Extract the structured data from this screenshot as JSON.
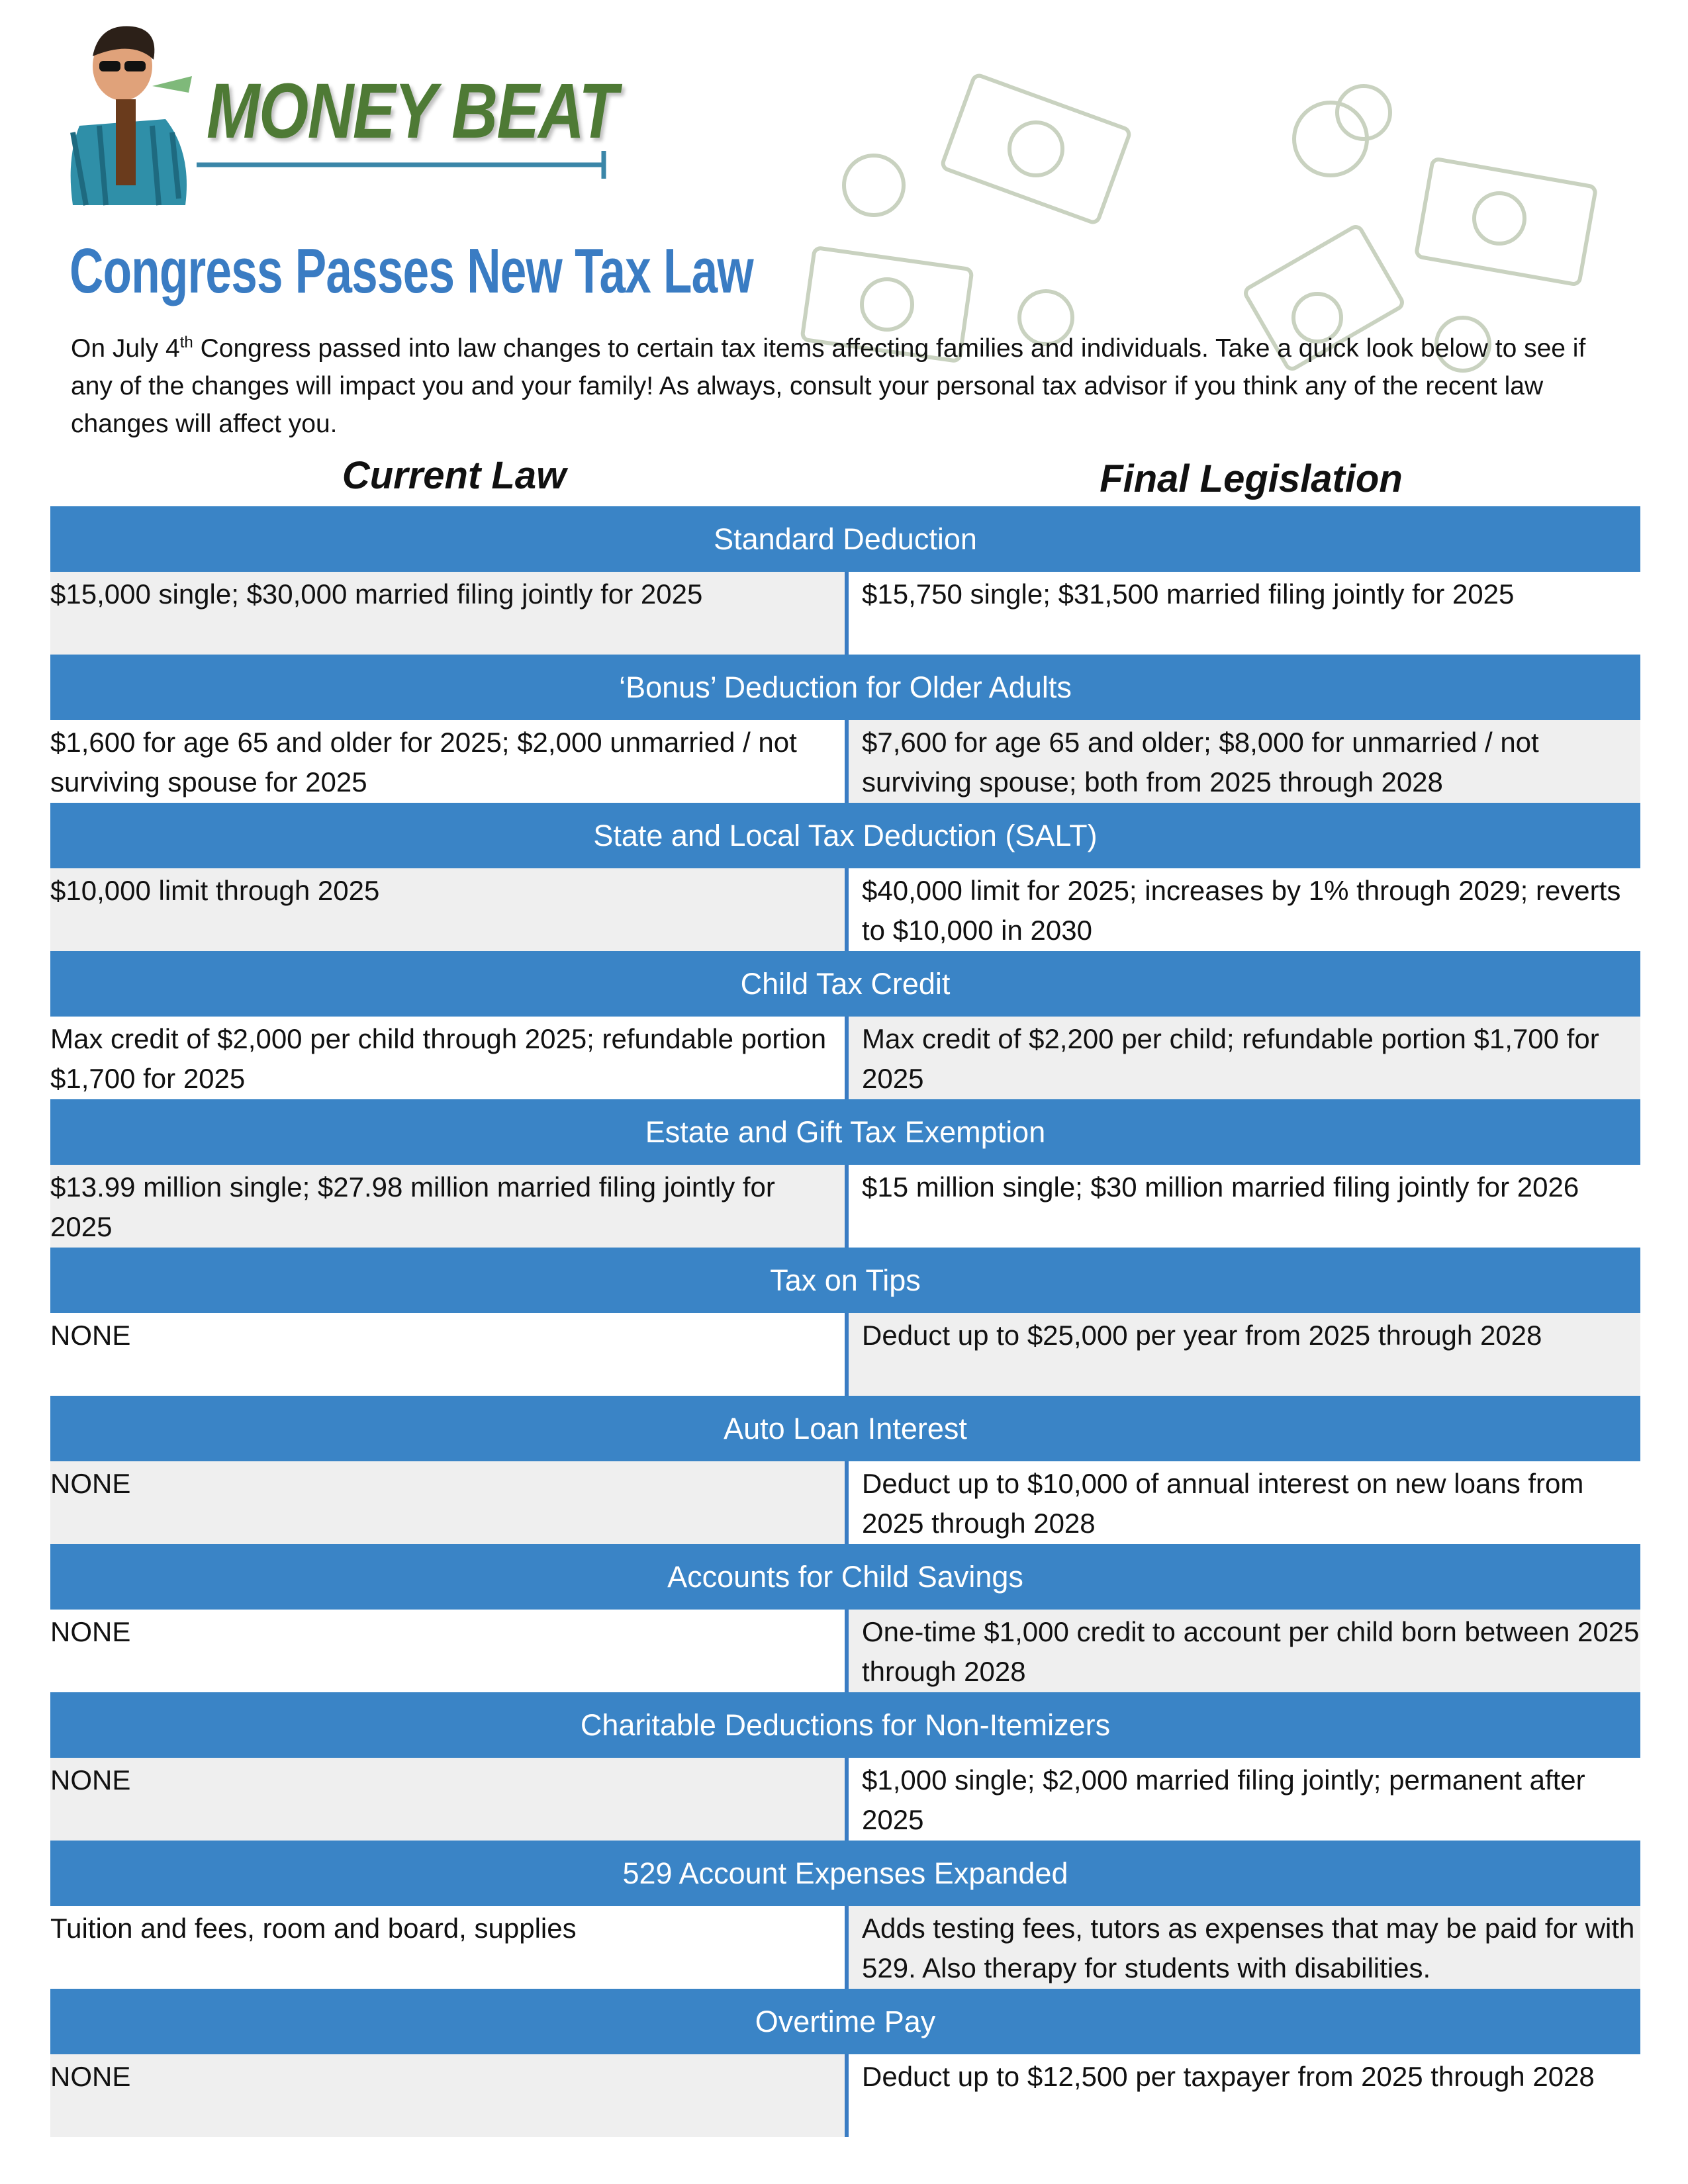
{
  "header": {
    "brand": "MONEY BEAT",
    "title": "Congress Passes New Tax Law",
    "intro": {
      "before": "On July 4",
      "sup": "th",
      "after": " Congress passed into law changes to certain tax items affecting families and individuals. Take a quick look below to see if any of the changes will impact you and your family! As always, consult your personal tax advisor if you think any of the recent law changes will affect you."
    }
  },
  "table": {
    "columns": [
      "Current Law",
      "Final Legislation"
    ],
    "sections": [
      {
        "heading": "Standard Deduction",
        "current": "$15,000 single; $30,000 married filing jointly for 2025",
        "final": "$15,750 single; $31,500 married filing jointly for 2025"
      },
      {
        "heading": "‘Bonus’ Deduction for Older Adults",
        "current": "$1,600 for age 65 and older for 2025; $2,000 unmarried / not surviving spouse for 2025",
        "final": "$7,600 for age 65 and older; $8,000 for unmarried / not surviving spouse; both from 2025 through 2028"
      },
      {
        "heading": "State and Local Tax Deduction (SALT)",
        "current": "$10,000 limit through 2025",
        "final": "$40,000 limit for 2025; increases by 1% through 2029; reverts to $10,000 in 2030"
      },
      {
        "heading": "Child Tax Credit",
        "current": "Max credit of $2,000 per child through 2025; refundable portion $1,700 for 2025",
        "final": "Max credit of $2,200 per child; refundable portion $1,700 for 2025"
      },
      {
        "heading": "Estate and Gift Tax Exemption",
        "current": "$13.99 million single; $27.98 million married filing jointly for 2025",
        "final": "$15 million single; $30 million married filing jointly for 2026"
      },
      {
        "heading": "Tax on Tips",
        "current": "NONE",
        "final": "Deduct up to $25,000 per year from 2025 through 2028"
      },
      {
        "heading": "Auto Loan Interest",
        "current": "NONE",
        "final": "Deduct up to $10,000 of annual interest on new loans from 2025 through 2028"
      },
      {
        "heading": "Accounts for Child Savings",
        "current": "NONE",
        "final": "One-time $1,000 credit to account per child born between 2025 through 2028"
      },
      {
        "heading": "Charitable Deductions for Non-Itemizers",
        "current": "NONE",
        "final": "$1,000 single; $2,000 married filing jointly; permanent after 2025"
      },
      {
        "heading": "529 Account Expenses Expanded",
        "current": "Tuition and fees, room and board, supplies",
        "final": "Adds testing fees, tutors as expenses that may be paid for with 529. Also therapy for students with disabilities."
      },
      {
        "heading": "Overtime Pay",
        "current": "NONE",
        "final": "Deduct up to $12,500 per taxpayer from 2025 through 2028"
      }
    ]
  }
}
